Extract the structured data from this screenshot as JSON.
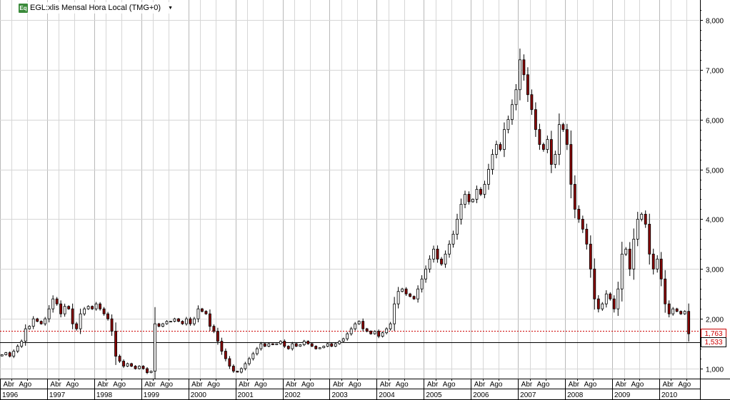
{
  "legend": {
    "icon": "Eq",
    "title": "EGL:xlis Mensal Hora Local (TMG+0)",
    "dropdown_icon": "caret-down-icon"
  },
  "price_labels": {
    "upper": {
      "value": "1,763",
      "color": "#cc0000"
    },
    "lower": {
      "value": "1,533",
      "color": "#000000"
    }
  },
  "chart_data": {
    "type": "candlestick",
    "interval": "monthly",
    "y_axis": {
      "position": "right",
      "range": [
        0.8,
        8.4
      ],
      "ticks": [
        "1,000",
        "2,000",
        "3,000",
        "4,000",
        "5,000",
        "6,000",
        "7,000",
        "8,000"
      ],
      "tick_values": [
        1,
        2,
        3,
        4,
        5,
        6,
        7,
        8
      ]
    },
    "x_range": [
      1996.0,
      2010.85
    ],
    "years": [
      "1996",
      "1997",
      "1998",
      "1999",
      "2000",
      "2001",
      "2002",
      "2003",
      "2004",
      "2005",
      "2006",
      "2007",
      "2008",
      "2009",
      "2010"
    ],
    "month_labels": [
      "Abr",
      "Ago"
    ],
    "grid": true,
    "reference_lines": [
      {
        "value": 1.763,
        "style": "dotted",
        "color": "#cc0000"
      },
      {
        "value": 1.533,
        "style": "solid",
        "color": "#000000"
      }
    ],
    "colors": {
      "up": "#ffffff",
      "down": "#8b0000",
      "wick": "#000000",
      "grid": "#c0c0c0"
    },
    "monthly_close": [
      1.28,
      1.32,
      1.25,
      1.35,
      1.45,
      1.55,
      1.8,
      1.85,
      2.0,
      1.95,
      1.9,
      2.0,
      2.2,
      2.4,
      2.3,
      2.1,
      2.25,
      2.2,
      1.9,
      1.8,
      2.1,
      2.2,
      2.25,
      2.2,
      2.3,
      2.2,
      2.1,
      2.0,
      1.75,
      1.25,
      1.15,
      1.05,
      1.1,
      1.05,
      1.0,
      1.05,
      1.0,
      0.92,
      0.95,
      1.9,
      1.85,
      1.9,
      1.95,
      1.95,
      2.0,
      1.95,
      1.9,
      2.0,
      1.9,
      2.0,
      2.2,
      2.15,
      2.1,
      1.85,
      1.75,
      1.55,
      1.35,
      1.2,
      1.05,
      0.95,
      0.93,
      1.0,
      1.1,
      1.2,
      1.3,
      1.4,
      1.5,
      1.45,
      1.5,
      1.48,
      1.5,
      1.55,
      1.45,
      1.4,
      1.5,
      1.45,
      1.48,
      1.55,
      1.5,
      1.45,
      1.4,
      1.42,
      1.45,
      1.5,
      1.45,
      1.5,
      1.55,
      1.6,
      1.7,
      1.8,
      1.9,
      1.95,
      1.8,
      1.75,
      1.7,
      1.75,
      1.65,
      1.72,
      1.8,
      1.9,
      2.3,
      2.55,
      2.6,
      2.5,
      2.45,
      2.4,
      2.6,
      2.8,
      3.0,
      3.2,
      3.4,
      3.2,
      3.1,
      3.3,
      3.5,
      3.7,
      4.0,
      4.3,
      4.5,
      4.35,
      4.4,
      4.6,
      4.5,
      4.7,
      5.0,
      5.3,
      5.5,
      5.4,
      5.8,
      6.0,
      6.3,
      6.6,
      7.2,
      6.9,
      6.5,
      6.2,
      5.8,
      5.5,
      5.4,
      5.6,
      5.1,
      5.3,
      5.9,
      5.8,
      5.5,
      4.7,
      4.2,
      4.0,
      3.8,
      3.5,
      3.0,
      2.4,
      2.2,
      2.3,
      2.5,
      2.4,
      2.2,
      2.6,
      3.3,
      3.4,
      3.0,
      3.6,
      4.0,
      4.1,
      3.9,
      3.3,
      3.0,
      3.2,
      2.8,
      2.3,
      2.1,
      2.2,
      2.15,
      2.1,
      2.15,
      1.7
    ]
  }
}
